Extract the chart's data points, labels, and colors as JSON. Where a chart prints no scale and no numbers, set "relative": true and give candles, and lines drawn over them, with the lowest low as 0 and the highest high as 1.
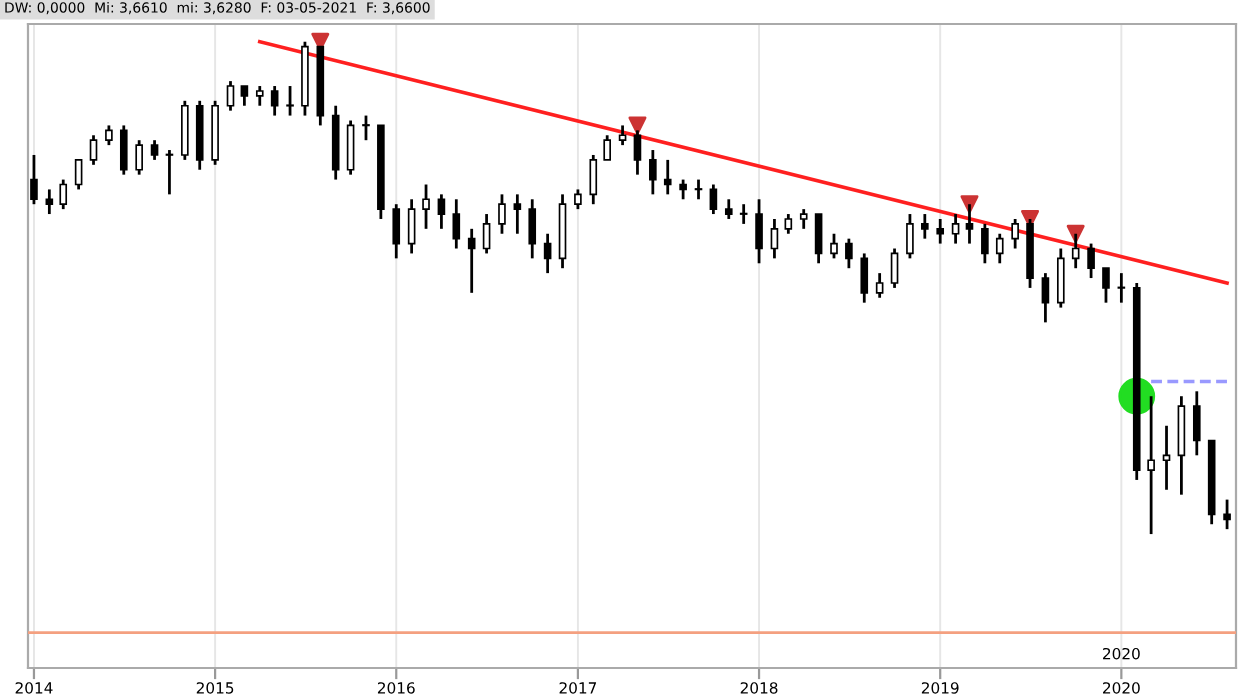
{
  "chart_data": {
    "type": "candlestick",
    "relative": true,
    "grid": "x",
    "tick_labels": "x",
    "legend": false,
    "annotations": [
      "DW: 0,0000  Mi: 3,6610  mi: 3,6280  F: 03-05-2021  F: 3,6600",
      "2020"
    ],
    "xlim": [
      "2013-12-20",
      "2020-08-19"
    ],
    "xticks": [
      {
        "value": "2014-01",
        "label": "2014"
      },
      {
        "value": "2015-01",
        "label": "2015"
      },
      {
        "value": "2016-01",
        "label": "2016"
      },
      {
        "value": "2017-01",
        "label": "2017"
      },
      {
        "value": "2018-01",
        "label": "2018"
      },
      {
        "value": "2019-01",
        "label": "2019"
      },
      {
        "value": "2020-01",
        "label": "2020"
      }
    ],
    "ref_lines": [
      {
        "axis": "y",
        "value": -0.2,
        "color": "#f4a080",
        "line_style": "solid"
      }
    ],
    "series": [
      {
        "type": "candlestick",
        "color": "#000000",
        "x": [
          "2014-01",
          "2014-02",
          "2014-03",
          "2014-04",
          "2014-05",
          "2014-06",
          "2014-07",
          "2014-08",
          "2014-09",
          "2014-10",
          "2014-11",
          "2014-12",
          "2015-01",
          "2015-02",
          "2015-03",
          "2015-04",
          "2015-05",
          "2015-06",
          "2015-07",
          "2015-08",
          "2015-09",
          "2015-10",
          "2015-11",
          "2015-12",
          "2016-01",
          "2016-02",
          "2016-03",
          "2016-04",
          "2016-05",
          "2016-06",
          "2016-07",
          "2016-08",
          "2016-09",
          "2016-10",
          "2016-11",
          "2016-12",
          "2017-01",
          "2017-02",
          "2017-03",
          "2017-04",
          "2017-05",
          "2017-06",
          "2017-07",
          "2017-08",
          "2017-09",
          "2017-10",
          "2017-11",
          "2017-12",
          "2018-01",
          "2018-02",
          "2018-03",
          "2018-04",
          "2018-05",
          "2018-06",
          "2018-07",
          "2018-08",
          "2018-09",
          "2018-10",
          "2018-11",
          "2018-12",
          "2019-01",
          "2019-02",
          "2019-03",
          "2019-04",
          "2019-05",
          "2019-06",
          "2019-07",
          "2019-08",
          "2019-09",
          "2019-10",
          "2019-11",
          "2019-12",
          "2020-01",
          "2020-02",
          "2020-03",
          "2020-04",
          "2020-05",
          "2020-06",
          "2020-07",
          "2020-08"
        ],
        "ohlc": [
          [
            0.72,
            0.77,
            0.67,
            0.68
          ],
          [
            0.68,
            0.7,
            0.65,
            0.67
          ],
          [
            0.67,
            0.72,
            0.66,
            0.71
          ],
          [
            0.71,
            0.76,
            0.7,
            0.76
          ],
          [
            0.76,
            0.81,
            0.75,
            0.8
          ],
          [
            0.8,
            0.83,
            0.79,
            0.82
          ],
          [
            0.82,
            0.83,
            0.73,
            0.74
          ],
          [
            0.74,
            0.8,
            0.73,
            0.79
          ],
          [
            0.79,
            0.8,
            0.76,
            0.77
          ],
          [
            0.77,
            0.78,
            0.69,
            0.77
          ],
          [
            0.77,
            0.88,
            0.76,
            0.87
          ],
          [
            0.87,
            0.88,
            0.74,
            0.76
          ],
          [
            0.76,
            0.88,
            0.75,
            0.87
          ],
          [
            0.87,
            0.92,
            0.86,
            0.91
          ],
          [
            0.91,
            0.91,
            0.87,
            0.89
          ],
          [
            0.89,
            0.91,
            0.87,
            0.9
          ],
          [
            0.9,
            0.91,
            0.85,
            0.87
          ],
          [
            0.87,
            0.91,
            0.85,
            0.87
          ],
          [
            0.87,
            1.0,
            0.85,
            0.99
          ],
          [
            0.99,
            0.99,
            0.83,
            0.85
          ],
          [
            0.85,
            0.87,
            0.72,
            0.74
          ],
          [
            0.74,
            0.84,
            0.73,
            0.83
          ],
          [
            0.83,
            0.85,
            0.8,
            0.83
          ],
          [
            0.83,
            0.83,
            0.64,
            0.66
          ],
          [
            0.66,
            0.67,
            0.56,
            0.59
          ],
          [
            0.59,
            0.68,
            0.57,
            0.66
          ],
          [
            0.66,
            0.71,
            0.62,
            0.68
          ],
          [
            0.68,
            0.69,
            0.62,
            0.65
          ],
          [
            0.65,
            0.68,
            0.58,
            0.6
          ],
          [
            0.6,
            0.62,
            0.49,
            0.58
          ],
          [
            0.58,
            0.65,
            0.57,
            0.63
          ],
          [
            0.63,
            0.69,
            0.61,
            0.67
          ],
          [
            0.67,
            0.69,
            0.61,
            0.66
          ],
          [
            0.66,
            0.68,
            0.56,
            0.59
          ],
          [
            0.59,
            0.61,
            0.53,
            0.56
          ],
          [
            0.56,
            0.69,
            0.54,
            0.67
          ],
          [
            0.67,
            0.7,
            0.66,
            0.69
          ],
          [
            0.69,
            0.77,
            0.67,
            0.76
          ],
          [
            0.76,
            0.81,
            0.76,
            0.8
          ],
          [
            0.8,
            0.83,
            0.79,
            0.81
          ],
          [
            0.81,
            0.82,
            0.73,
            0.76
          ],
          [
            0.76,
            0.78,
            0.69,
            0.72
          ],
          [
            0.72,
            0.76,
            0.69,
            0.71
          ],
          [
            0.71,
            0.72,
            0.68,
            0.7
          ],
          [
            0.7,
            0.72,
            0.68,
            0.7
          ],
          [
            0.7,
            0.71,
            0.65,
            0.66
          ],
          [
            0.66,
            0.68,
            0.64,
            0.65
          ],
          [
            0.65,
            0.67,
            0.63,
            0.65
          ],
          [
            0.65,
            0.68,
            0.55,
            0.58
          ],
          [
            0.58,
            0.64,
            0.56,
            0.62
          ],
          [
            0.62,
            0.65,
            0.61,
            0.64
          ],
          [
            0.64,
            0.66,
            0.62,
            0.65
          ],
          [
            0.65,
            0.65,
            0.55,
            0.57
          ],
          [
            0.57,
            0.61,
            0.56,
            0.59
          ],
          [
            0.59,
            0.6,
            0.54,
            0.56
          ],
          [
            0.56,
            0.57,
            0.47,
            0.49
          ],
          [
            0.49,
            0.53,
            0.48,
            0.51
          ],
          [
            0.51,
            0.58,
            0.5,
            0.57
          ],
          [
            0.57,
            0.65,
            0.56,
            0.63
          ],
          [
            0.63,
            0.65,
            0.6,
            0.62
          ],
          [
            0.62,
            0.64,
            0.59,
            0.61
          ],
          [
            0.61,
            0.65,
            0.59,
            0.63
          ],
          [
            0.63,
            0.67,
            0.59,
            0.62
          ],
          [
            0.62,
            0.63,
            0.55,
            0.57
          ],
          [
            0.57,
            0.61,
            0.55,
            0.6
          ],
          [
            0.6,
            0.64,
            0.58,
            0.63
          ],
          [
            0.63,
            0.64,
            0.5,
            0.52
          ],
          [
            0.52,
            0.53,
            0.43,
            0.47
          ],
          [
            0.47,
            0.58,
            0.46,
            0.56
          ],
          [
            0.56,
            0.61,
            0.54,
            0.58
          ],
          [
            0.58,
            0.59,
            0.52,
            0.54
          ],
          [
            0.54,
            0.54,
            0.47,
            0.5
          ],
          [
            0.5,
            0.53,
            0.47,
            0.5
          ],
          [
            0.5,
            0.51,
            0.11,
            0.13
          ],
          [
            0.13,
            0.28,
            0.0,
            0.15
          ],
          [
            0.15,
            0.22,
            0.09,
            0.16
          ],
          [
            0.16,
            0.28,
            0.08,
            0.26
          ],
          [
            0.26,
            0.29,
            0.16,
            0.19
          ],
          [
            0.19,
            0.19,
            0.02,
            0.04
          ],
          [
            0.04,
            0.07,
            0.01,
            0.03
          ]
        ]
      },
      {
        "type": "line",
        "color": "#ff2020",
        "line_style": "solid",
        "x": [
          "2015-04",
          "2020-08"
        ],
        "values": [
          1.0,
          0.51
        ]
      },
      {
        "type": "line",
        "color": "#9999ff",
        "line_style": "dashed",
        "x": [
          "2020-03",
          "2020-08"
        ],
        "values": [
          0.31,
          0.31
        ]
      },
      {
        "type": "scatter",
        "color": "#cc3333",
        "marker": "triangle",
        "x": [
          "2015-08",
          "2017-05",
          "2019-03",
          "2019-07",
          "2019-10"
        ],
        "values": [
          1.0,
          0.83,
          0.67,
          0.64,
          0.61
        ]
      },
      {
        "type": "scatter",
        "color": "#22dd22",
        "marker": "circle",
        "x": [
          "2020-02"
        ],
        "values": [
          0.28
        ]
      }
    ]
  }
}
